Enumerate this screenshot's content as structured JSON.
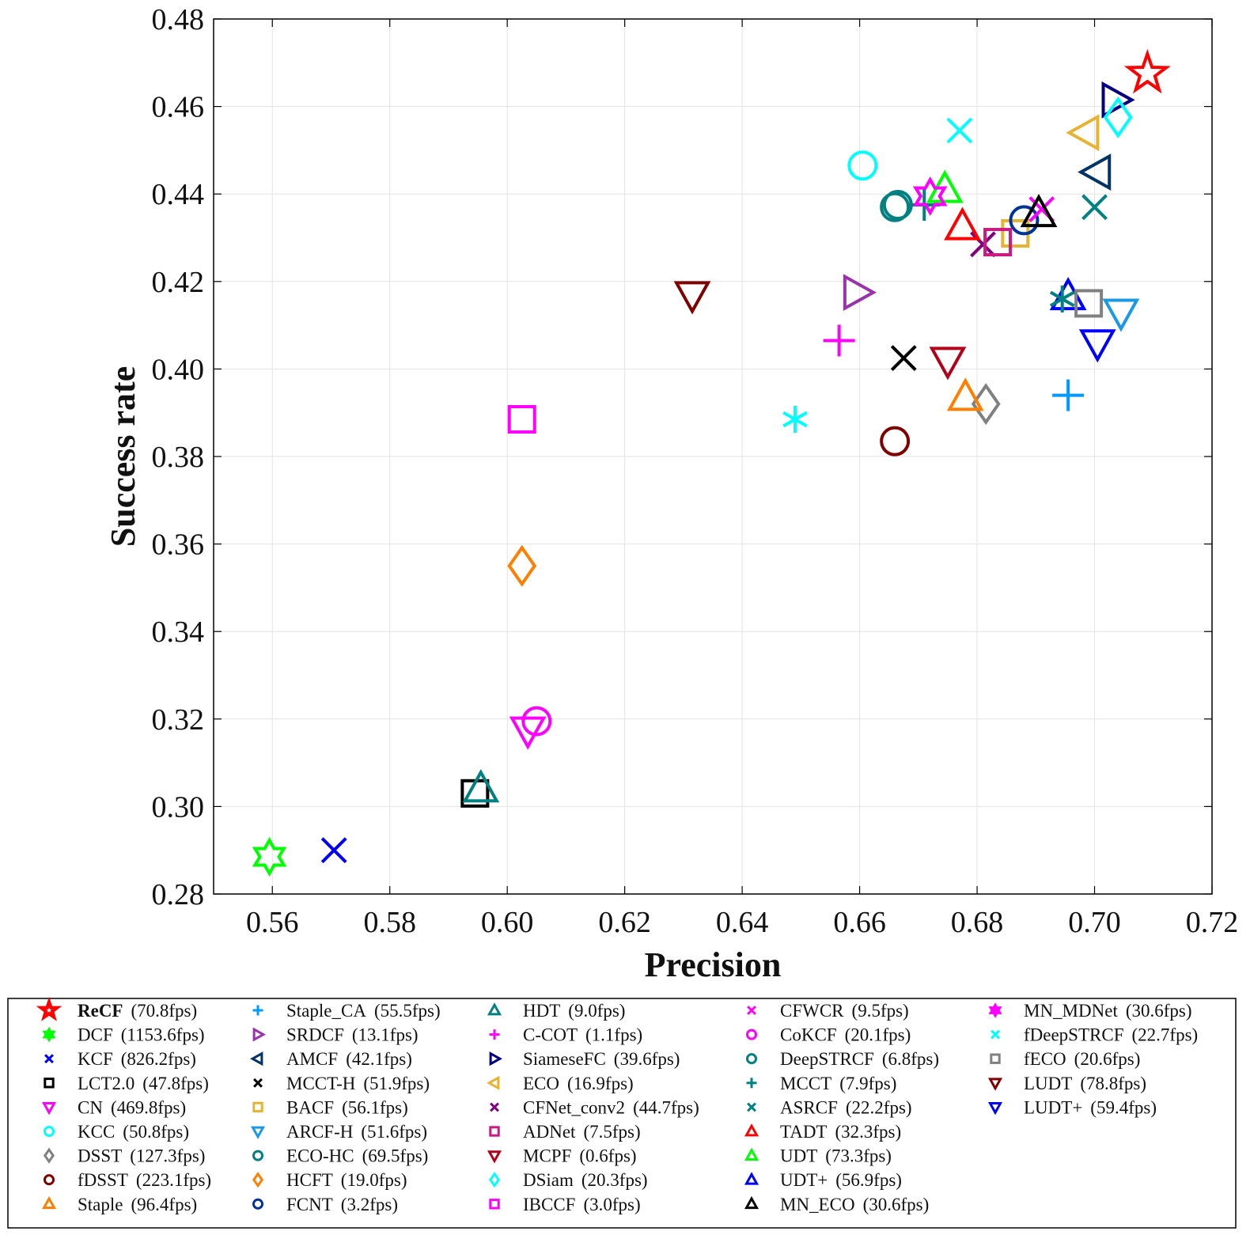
{
  "chart_data": {
    "type": "scatter",
    "xlabel": "Precision",
    "ylabel": "Success rate",
    "xlim": [
      0.55,
      0.72
    ],
    "ylim": [
      0.28,
      0.48
    ],
    "xticks": [
      "0.56",
      "0.58",
      "0.60",
      "0.62",
      "0.64",
      "0.66",
      "0.68",
      "0.70",
      "0.72"
    ],
    "yticks": [
      "0.28",
      "0.30",
      "0.32",
      "0.34",
      "0.36",
      "0.38",
      "0.40",
      "0.42",
      "0.44",
      "0.46",
      "0.48"
    ],
    "grid": true,
    "legend_position": "bottom",
    "series": [
      {
        "name": "ReCF",
        "fps": "(70.8fps)",
        "marker": "star-filled",
        "color": "#ff0000",
        "x": 0.709,
        "y": 0.4675,
        "bold": true
      },
      {
        "name": "DCF",
        "fps": "(1153.6fps)",
        "marker": "hexagram",
        "color": "#00ff00",
        "x": 0.5595,
        "y": 0.2885
      },
      {
        "name": "KCF",
        "fps": "(826.2fps)",
        "marker": "x",
        "color": "#0000ff",
        "x": 0.5705,
        "y": 0.29
      },
      {
        "name": "LCT2.0",
        "fps": "(47.8fps)",
        "marker": "square",
        "color": "#000000",
        "x": 0.5945,
        "y": 0.303
      },
      {
        "name": "CN",
        "fps": "(469.8fps)",
        "marker": "triangle-down",
        "color": "#ff00ff",
        "x": 0.6035,
        "y": 0.3175
      },
      {
        "name": "KCC",
        "fps": "(50.8fps)",
        "marker": "circle",
        "color": "#00ffff",
        "x": 0.6605,
        "y": 0.4465
      },
      {
        "name": "DSST",
        "fps": "(127.3fps)",
        "marker": "diamond",
        "color": "#808080",
        "x": 0.6815,
        "y": 0.392
      },
      {
        "name": "fDSST",
        "fps": "(223.1fps)",
        "marker": "circle",
        "color": "#800000",
        "x": 0.666,
        "y": 0.3835
      },
      {
        "name": "Staple",
        "fps": "(96.4fps)",
        "marker": "triangle-up",
        "color": "#ff8000",
        "x": 0.678,
        "y": 0.3935
      },
      {
        "name": "Staple_CA",
        "fps": "(55.5fps)",
        "marker": "plus",
        "color": "#0099ff",
        "x": 0.6955,
        "y": 0.394
      },
      {
        "name": "SRDCF",
        "fps": "(13.1fps)",
        "marker": "triangle-right",
        "color": "#9933aa",
        "x": 0.6595,
        "y": 0.4175
      },
      {
        "name": "AMCF",
        "fps": "(42.1fps)",
        "marker": "triangle-left",
        "color": "#003366",
        "x": 0.7005,
        "y": 0.445
      },
      {
        "name": "MCCT-H",
        "fps": "(51.9fps)",
        "marker": "x",
        "color": "#000000",
        "x": 0.6675,
        "y": 0.4025
      },
      {
        "name": "BACF",
        "fps": "(56.1fps)",
        "marker": "square",
        "color": "#e6b333",
        "x": 0.6865,
        "y": 0.431
      },
      {
        "name": "ARCF-H",
        "fps": "(51.6fps)",
        "marker": "triangle-down",
        "color": "#1a99e6",
        "x": 0.7045,
        "y": 0.413
      },
      {
        "name": "ECO-HC",
        "fps": "(69.5fps)",
        "marker": "circle",
        "color": "#008080",
        "x": 0.666,
        "y": 0.437
      },
      {
        "name": "HCFT",
        "fps": "(19.0fps)",
        "marker": "diamond",
        "color": "#ff8000",
        "x": 0.6025,
        "y": 0.355
      },
      {
        "name": "FCNT",
        "fps": "(3.2fps)",
        "marker": "circle",
        "color": "#003399",
        "x": 0.688,
        "y": 0.434
      },
      {
        "name": "HDT",
        "fps": "(9.0fps)",
        "marker": "triangle-up",
        "color": "#008080",
        "x": 0.5955,
        "y": 0.304
      },
      {
        "name": "C-COT",
        "fps": "(1.1fps)",
        "marker": "plus",
        "color": "#ff00ff",
        "x": 0.6565,
        "y": 0.4065
      },
      {
        "name": "SiameseFC",
        "fps": "(39.6fps)",
        "marker": "triangle-right",
        "color": "#000080",
        "x": 0.7035,
        "y": 0.4615
      },
      {
        "name": "ECO",
        "fps": "(16.9fps)",
        "marker": "triangle-left",
        "color": "#e6b333",
        "x": 0.6985,
        "y": 0.454
      },
      {
        "name": "CFNet_conv2",
        "fps": "(44.7fps)",
        "marker": "x",
        "color": "#800080",
        "x": 0.681,
        "y": 0.4285
      },
      {
        "name": "ADNet",
        "fps": "(7.5fps)",
        "marker": "square",
        "color": "#cc1a80",
        "x": 0.6835,
        "y": 0.429
      },
      {
        "name": "MCPF",
        "fps": "(0.6fps)",
        "marker": "triangle-down",
        "color": "#b3001a",
        "x": 0.675,
        "y": 0.402
      },
      {
        "name": "DSiam",
        "fps": "(20.3fps)",
        "marker": "diamond",
        "color": "#00ffff",
        "x": 0.704,
        "y": 0.4575
      },
      {
        "name": "IBCCF",
        "fps": "(3.0fps)",
        "marker": "square",
        "color": "#ff00ff",
        "x": 0.6025,
        "y": 0.3885
      },
      {
        "name": "CFWCR",
        "fps": "(9.5fps)",
        "marker": "x",
        "color": "#ff00ff",
        "x": 0.691,
        "y": 0.4365
      },
      {
        "name": "CoKCF",
        "fps": "(20.1fps)",
        "marker": "circle",
        "color": "#ff00ff",
        "x": 0.605,
        "y": 0.3195
      },
      {
        "name": "DeepSTRCF",
        "fps": "(6.8fps)",
        "marker": "circle",
        "color": "#008080",
        "x": 0.6665,
        "y": 0.4375
      },
      {
        "name": "MCCT",
        "fps": "(7.9fps)",
        "marker": "plus",
        "color": "#008080",
        "x": 0.671,
        "y": 0.4375
      },
      {
        "name": "ASRCF",
        "fps": "(22.2fps)",
        "marker": "x",
        "color": "#008080",
        "x": 0.7,
        "y": 0.437
      },
      {
        "name": "TADT",
        "fps": "(32.3fps)",
        "marker": "triangle-up",
        "color": "#ff0000",
        "x": 0.6775,
        "y": 0.4325
      },
      {
        "name": "UDT",
        "fps": "(73.3fps)",
        "marker": "triangle-up",
        "color": "#00ff00",
        "x": 0.6745,
        "y": 0.441
      },
      {
        "name": "UDT+",
        "fps": "(56.9fps)",
        "marker": "triangle-up",
        "color": "#0000ff",
        "x": 0.6955,
        "y": 0.4165
      },
      {
        "name": "MN_ECO",
        "fps": "(30.6fps)",
        "marker": "triangle-up",
        "color": "#000000",
        "x": 0.6905,
        "y": 0.4355
      },
      {
        "name": "MN_MDNet",
        "fps": "(30.6fps)",
        "marker": "hexagram",
        "color": "#ff00ff",
        "x": 0.672,
        "y": 0.4395
      },
      {
        "name": "fDeepSTRCF",
        "fps": "(22.7fps)",
        "marker": "asterisk-x",
        "color": "#00ffff",
        "x": 0.677,
        "y": 0.4545
      },
      {
        "name": "fECO",
        "fps": "(20.6fps)",
        "marker": "square",
        "color": "#808080",
        "x": 0.699,
        "y": 0.415
      },
      {
        "name": "LUDT",
        "fps": "(78.8fps)",
        "marker": "triangle-down",
        "color": "#800000",
        "x": 0.6315,
        "y": 0.417
      },
      {
        "name": "LUDT+",
        "fps": "(59.4fps)",
        "marker": "triangle-down",
        "color": "#0000ff",
        "x": 0.7005,
        "y": 0.406
      }
    ],
    "extra_points": [
      {
        "marker": "asterisk",
        "color": "#00ffff",
        "x": 0.649,
        "y": 0.3885
      },
      {
        "marker": "asterisk",
        "color": "#008080",
        "x": 0.6945,
        "y": 0.416
      }
    ]
  }
}
